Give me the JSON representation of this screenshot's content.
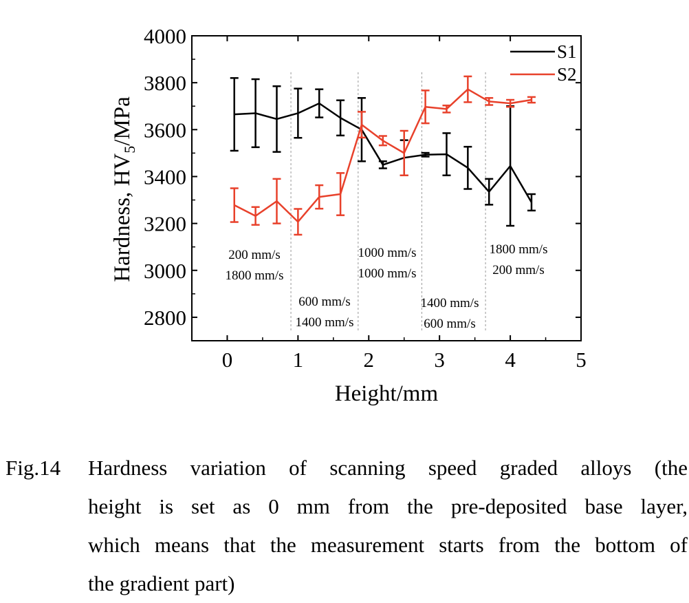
{
  "chart_data": {
    "type": "line",
    "xlabel": "Height/mm",
    "ylabel_prefix": "Hardness, HV",
    "ylabel_sub": "5",
    "ylabel_suffix": "/MPa",
    "xlim": [
      -0.5,
      5
    ],
    "ylim": [
      2700,
      4000
    ],
    "xticks": [
      0,
      1,
      2,
      3,
      4,
      5
    ],
    "yticks": [
      2800,
      3000,
      3200,
      3400,
      3600,
      3800,
      4000
    ],
    "legend_position": "top-right",
    "series": [
      {
        "name": "S1",
        "color": "#000000",
        "x": [
          0.1,
          0.4,
          0.7,
          1.0,
          1.3,
          1.6,
          1.9,
          2.2,
          2.5,
          2.8,
          3.1,
          3.4,
          3.7,
          4.0,
          4.3
        ],
        "y": [
          3665,
          3670,
          3645,
          3670,
          3712,
          3650,
          3600,
          3450,
          3480,
          3493,
          3495,
          3437,
          3335,
          3445,
          3290
        ],
        "err": [
          155,
          145,
          140,
          105,
          60,
          75,
          135,
          15,
          75,
          8,
          90,
          90,
          55,
          255,
          35
        ]
      },
      {
        "name": "S2",
        "color": "#e8412b",
        "x": [
          0.1,
          0.4,
          0.7,
          1.0,
          1.3,
          1.6,
          1.9,
          2.2,
          2.5,
          2.8,
          3.1,
          3.4,
          3.7,
          4.0,
          4.3
        ],
        "y": [
          3278,
          3232,
          3295,
          3207,
          3313,
          3325,
          3621,
          3553,
          3500,
          3697,
          3688,
          3772,
          3720,
          3712,
          3727
        ],
        "err": [
          72,
          38,
          95,
          55,
          50,
          90,
          55,
          20,
          95,
          70,
          15,
          55,
          15,
          15,
          12
        ]
      }
    ],
    "divider_x": [
      0.9,
      1.85,
      2.75,
      3.65
    ],
    "annotations": [
      {
        "lines": [
          "200 mm/s",
          "1800 mm/s"
        ]
      },
      {
        "lines": [
          "600 mm/s",
          "1400 mm/s"
        ]
      },
      {
        "lines": [
          "1000 mm/s",
          "1000 mm/s"
        ]
      },
      {
        "lines": [
          "1400 mm/s",
          "600 mm/s"
        ]
      },
      {
        "lines": [
          "1800 mm/s",
          "200 mm/s"
        ]
      }
    ]
  },
  "caption": {
    "number": "Fig.14",
    "line1": "Hardness variation of scanning speed graded alloys (the",
    "line2": "height is set as 0 mm from the pre-deposited base layer,",
    "line3": "which means that the measurement starts from the bottom of",
    "line4": "the gradient part)"
  }
}
